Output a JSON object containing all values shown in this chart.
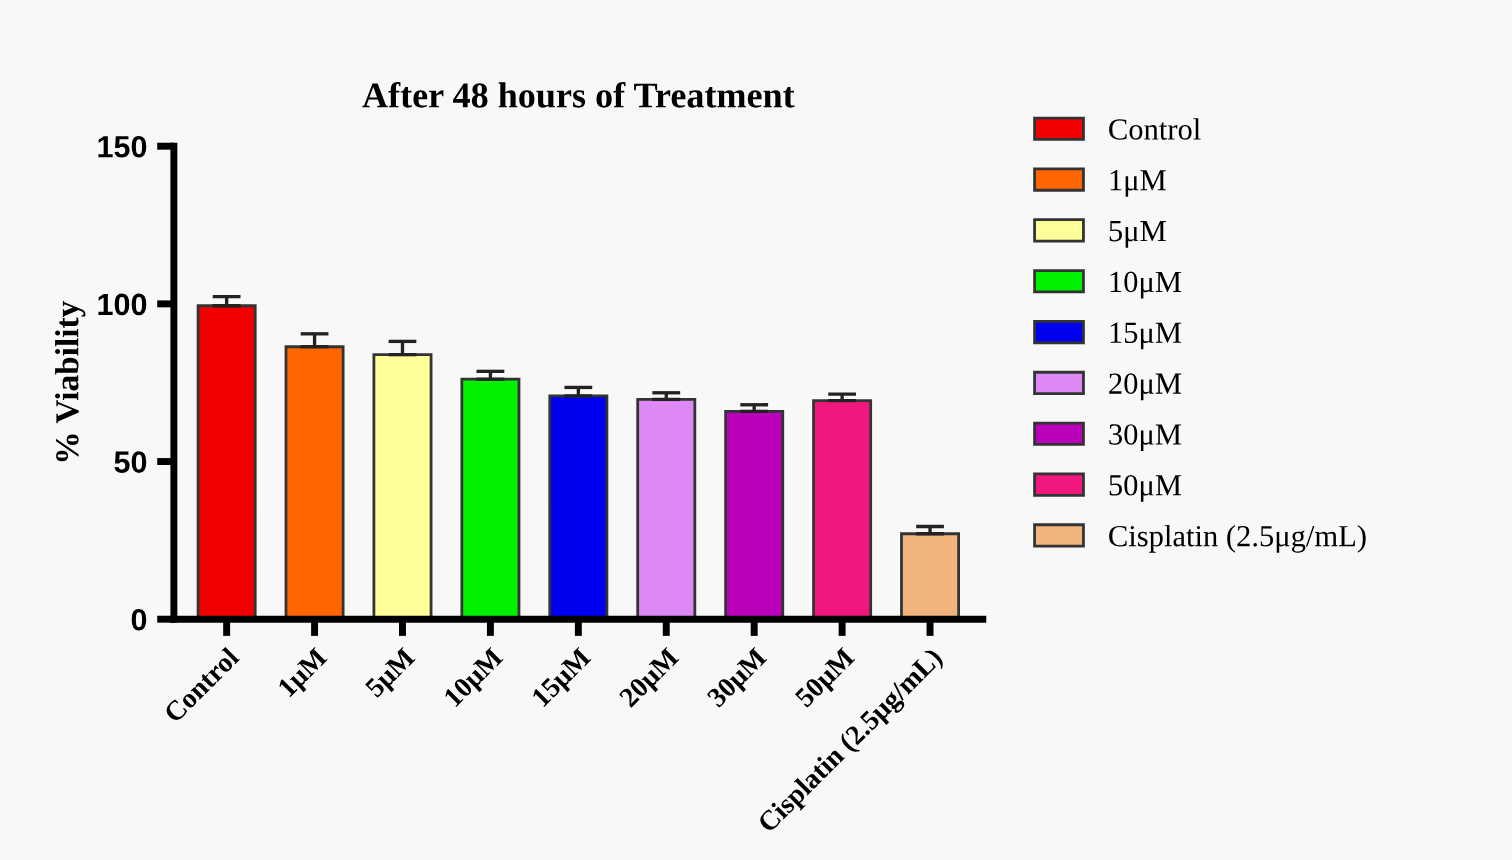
{
  "chart_data": {
    "type": "bar",
    "title": "After 48 hours of Treatment",
    "ylabel": "% Viability",
    "categories": [
      "Control",
      "1μM",
      "5μM",
      "10μM",
      "15μM",
      "20μM",
      "30μM",
      "50μM",
      "Cisplatin (2.5μg/mL)"
    ],
    "series": [
      {
        "name": "Control",
        "color": "#f20000",
        "values": [
          99.4,
          null,
          null,
          null,
          null,
          null,
          null,
          null,
          null
        ],
        "errors": [
          [
            99.4,
            102.3
          ],
          null,
          null,
          null,
          null,
          null,
          null,
          null,
          null
        ]
      },
      {
        "name": "1μM",
        "color": "#ff6600",
        "values": [
          null,
          86.4,
          null,
          null,
          null,
          null,
          null,
          null,
          null
        ],
        "errors": [
          null,
          [
            86.4,
            90.5
          ],
          null,
          null,
          null,
          null,
          null,
          null,
          null
        ]
      },
      {
        "name": "5μM",
        "color": "#ffff99",
        "values": [
          null,
          null,
          83.9,
          null,
          null,
          null,
          null,
          null,
          null
        ],
        "errors": [
          null,
          null,
          [
            83.9,
            88.1
          ],
          null,
          null,
          null,
          null,
          null,
          null
        ]
      },
      {
        "name": "10μM",
        "color": "#00f000",
        "values": [
          null,
          null,
          null,
          76.1,
          null,
          null,
          null,
          null,
          null
        ],
        "errors": [
          null,
          null,
          null,
          [
            76.1,
            78.6
          ],
          null,
          null,
          null,
          null,
          null
        ]
      },
      {
        "name": "15μM",
        "color": "#0000f0",
        "values": [
          null,
          null,
          null,
          null,
          70.8,
          null,
          null,
          null,
          null
        ],
        "errors": [
          null,
          null,
          null,
          null,
          [
            70.8,
            73.5
          ],
          null,
          null,
          null,
          null
        ]
      },
      {
        "name": "20μM",
        "color": "#dd88f5",
        "values": [
          null,
          null,
          null,
          null,
          null,
          69.7,
          null,
          null,
          null
        ],
        "errors": [
          null,
          null,
          null,
          null,
          null,
          [
            69.7,
            71.8
          ],
          null,
          null,
          null
        ]
      },
      {
        "name": "30μM",
        "color": "#bb00bb",
        "values": [
          null,
          null,
          null,
          null,
          null,
          null,
          65.9,
          null,
          null
        ],
        "errors": [
          null,
          null,
          null,
          null,
          null,
          null,
          [
            65.9,
            68.0
          ],
          null,
          null
        ]
      },
      {
        "name": "50μM",
        "color": "#f0177f",
        "values": [
          null,
          null,
          null,
          null,
          null,
          null,
          null,
          69.3,
          null
        ],
        "errors": [
          null,
          null,
          null,
          null,
          null,
          null,
          null,
          [
            69.3,
            71.4
          ],
          null
        ]
      },
      {
        "name": "Cisplatin (2.5μg/mL)",
        "color": "#f0b47c",
        "values": [
          null,
          null,
          null,
          null,
          null,
          null,
          null,
          null,
          27.1
        ],
        "errors": [
          null,
          null,
          null,
          null,
          null,
          null,
          null,
          null,
          [
            27.1,
            29.4
          ]
        ]
      }
    ],
    "ylim": [
      0,
      150
    ],
    "yticks": [
      0,
      50,
      100,
      150
    ],
    "grid": false,
    "legend": "right"
  }
}
